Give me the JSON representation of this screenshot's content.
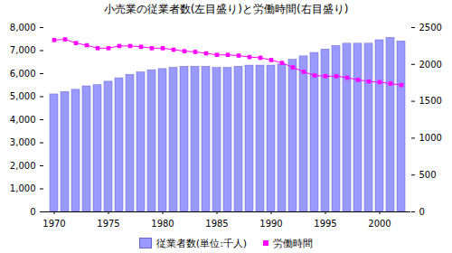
{
  "chart_data": {
    "type": "bar",
    "title": "小売業の従業者数(左目盛り)と労働時間(右目盛り)",
    "x": [
      1970,
      1971,
      1972,
      1973,
      1974,
      1975,
      1976,
      1977,
      1978,
      1979,
      1980,
      1981,
      1982,
      1983,
      1984,
      1985,
      1986,
      1987,
      1988,
      1989,
      1990,
      1991,
      1992,
      1993,
      1994,
      1995,
      1996,
      1997,
      1998,
      1999,
      2000,
      2001,
      2002
    ],
    "xticks": [
      1970,
      1975,
      1980,
      1985,
      1990,
      1995,
      2000
    ],
    "ylim": [
      0,
      8000
    ],
    "yticks": [
      0,
      {
        "value": 1000,
        "label": "1,000"
      },
      {
        "value": 2000,
        "label": "2,000"
      },
      {
        "value": 3000,
        "label": "3,000"
      },
      {
        "value": 4000,
        "label": "4,000"
      },
      {
        "value": 5000,
        "label": "5,000"
      },
      {
        "value": 6000,
        "label": "6,000"
      },
      {
        "value": 7000,
        "label": "7,000"
      },
      {
        "value": 8000,
        "label": "8,000"
      }
    ],
    "y2lim": [
      0,
      2500
    ],
    "y2ticks": [
      0,
      500,
      1000,
      1500,
      2000,
      2500
    ],
    "grid": false,
    "legend": "bottom",
    "series": [
      {
        "name": "従業者数(単位:千人)",
        "type": "bar",
        "color": "#9999ff",
        "values": [
          5100,
          5200,
          5300,
          5450,
          5500,
          5650,
          5800,
          5950,
          6050,
          6150,
          6200,
          6250,
          6300,
          6300,
          6300,
          6250,
          6250,
          6300,
          6350,
          6350,
          6350,
          6400,
          6600,
          6750,
          6900,
          7050,
          7200,
          7300,
          7300,
          7300,
          7450,
          7550,
          7400
        ]
      },
      {
        "name": "労働時間",
        "type": "line",
        "axis": "y2",
        "color": "#ff00ff",
        "marker": "square",
        "line_style": "solid",
        "values": [
          2330,
          2340,
          2290,
          2260,
          2220,
          2220,
          2250,
          2250,
          2240,
          2220,
          2220,
          2200,
          2180,
          2170,
          2150,
          2130,
          2130,
          2120,
          2100,
          2090,
          2060,
          2020,
          1960,
          1900,
          1850,
          1840,
          1840,
          1820,
          1790,
          1770,
          1760,
          1740,
          1720
        ]
      }
    ]
  }
}
